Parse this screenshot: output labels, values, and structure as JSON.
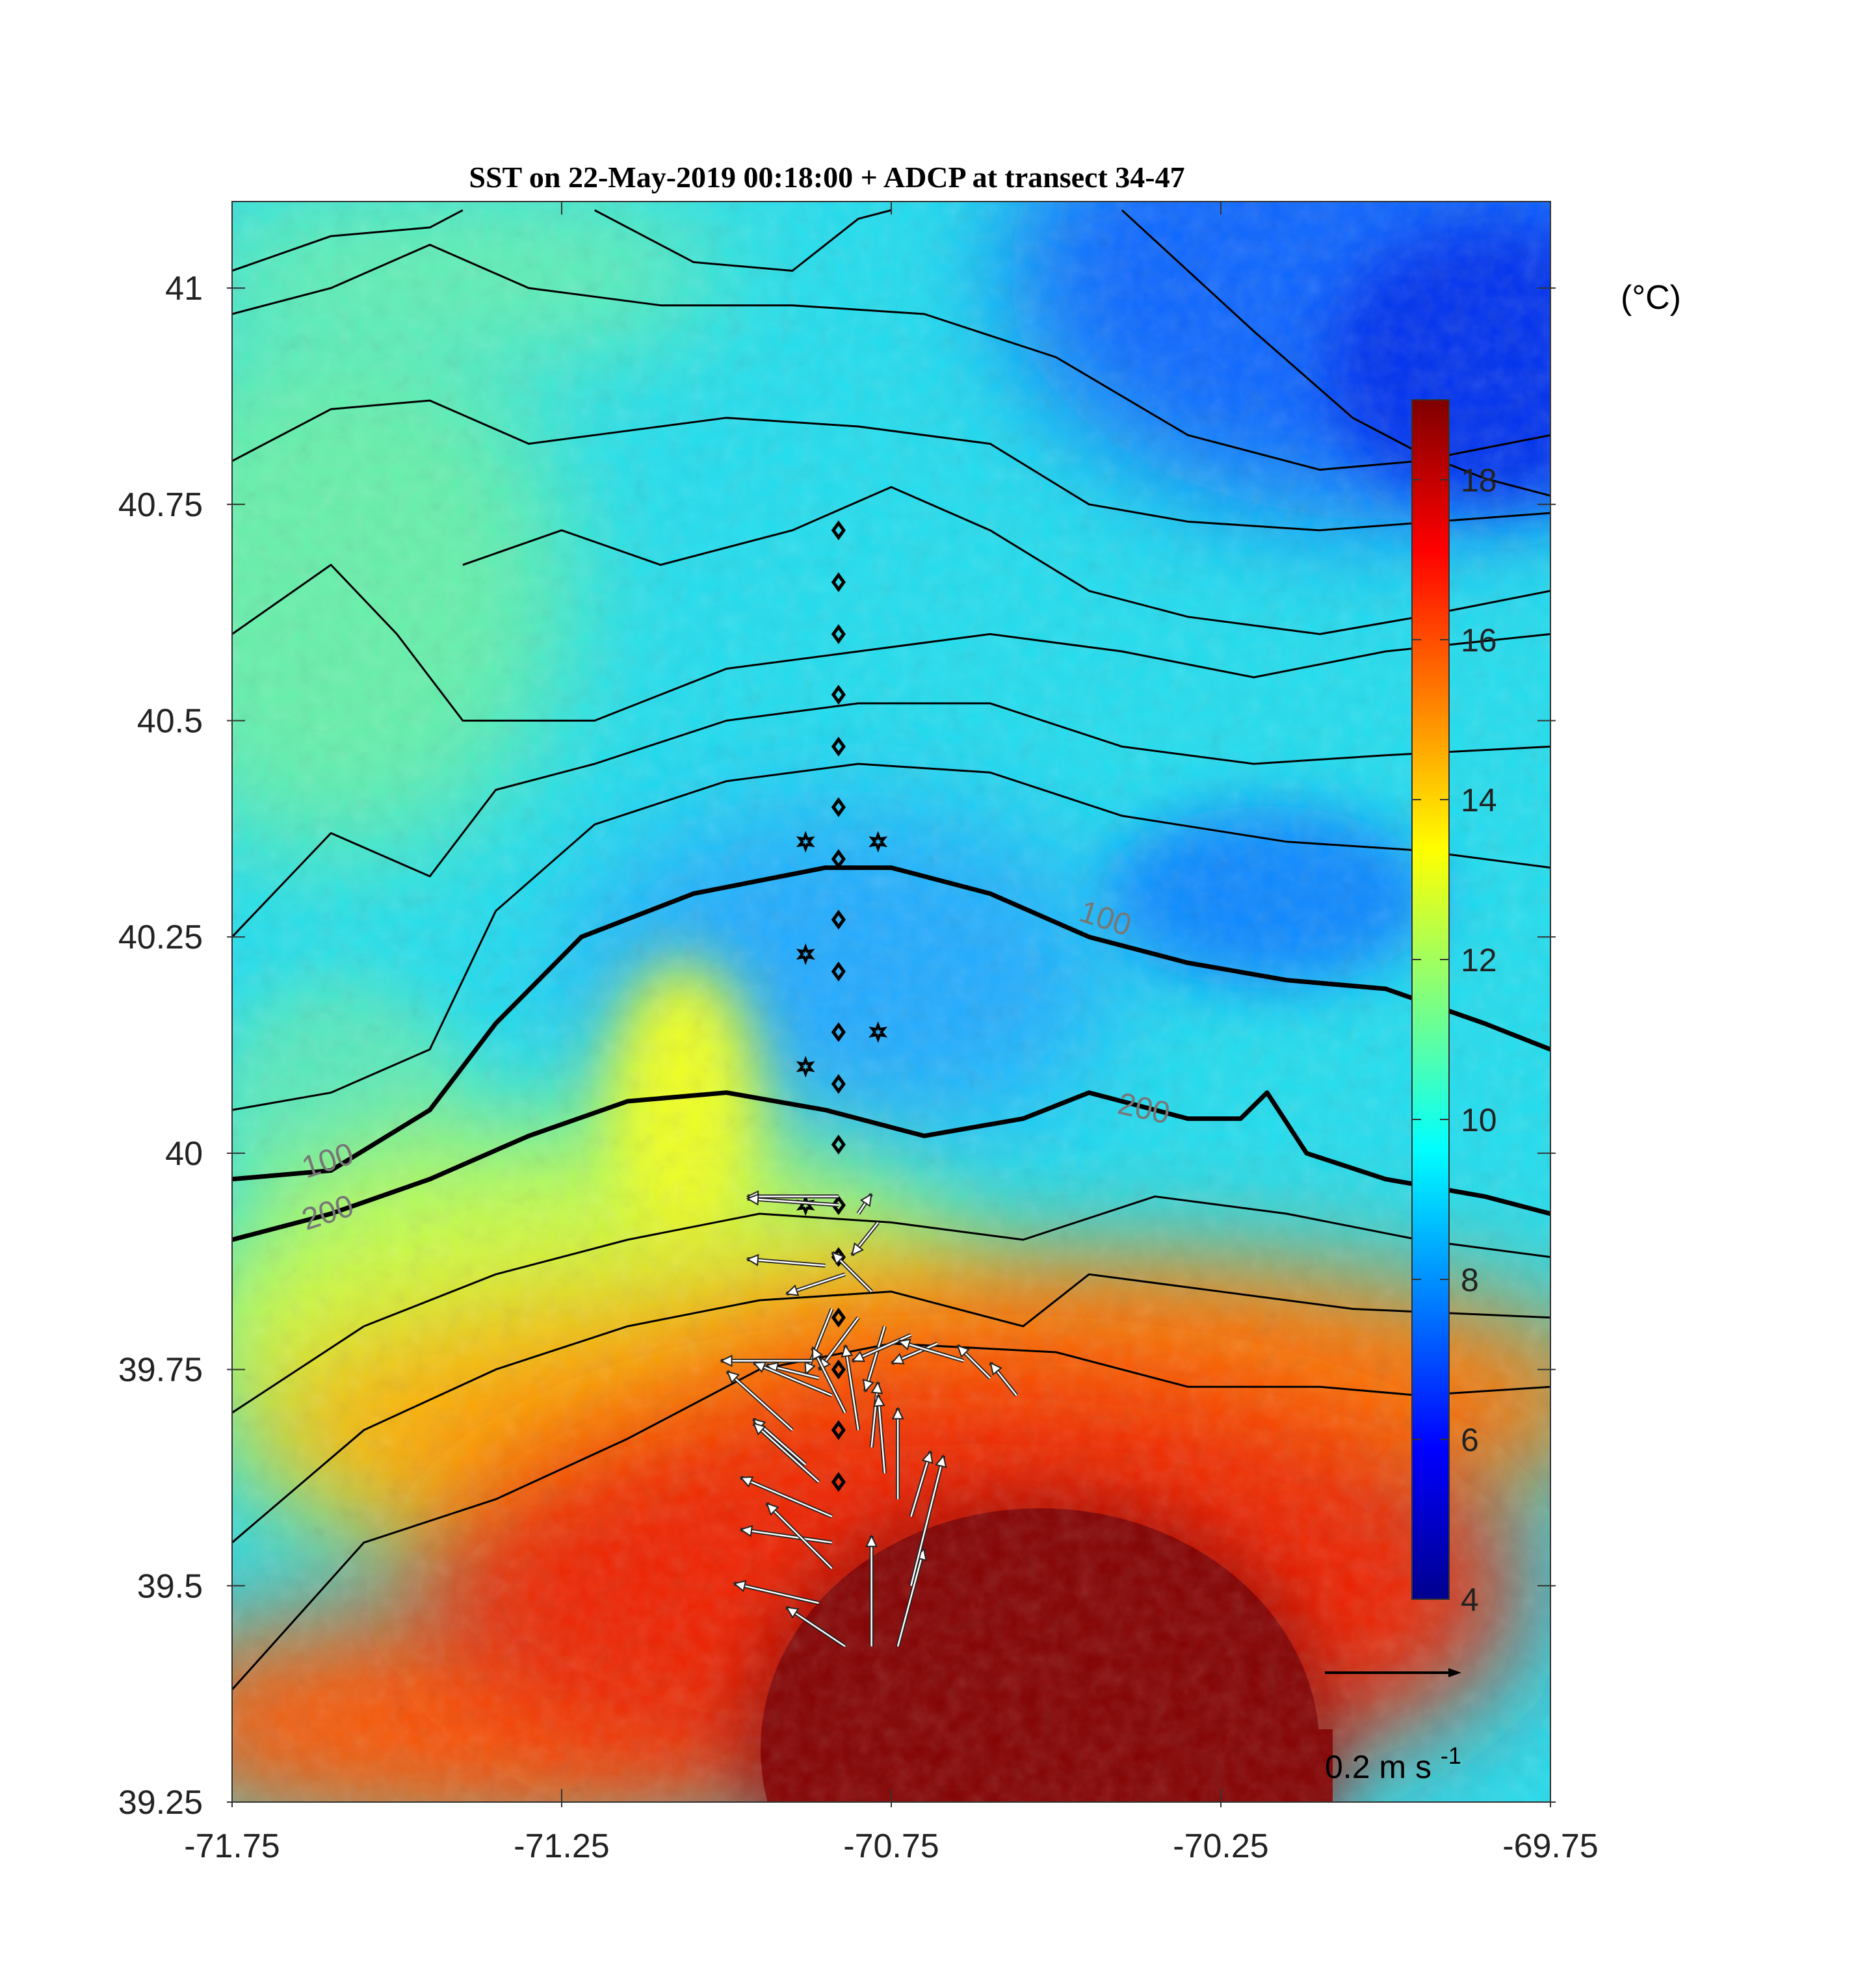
{
  "chart_data": {
    "type": "heatmap",
    "title": "SST on 22-May-2019 00:18:00 + ADCP at transect 34-47",
    "xlabel": "",
    "ylabel": "",
    "xlim": [
      -71.75,
      -69.75
    ],
    "ylim": [
      39.25,
      41.1
    ],
    "x_ticks": [
      -71.75,
      -71.25,
      -70.75,
      -70.25,
      -69.75
    ],
    "x_tick_labels": [
      "-71.75",
      "-71.25",
      "-70.75",
      "-70.25",
      "-69.75"
    ],
    "y_ticks": [
      39.25,
      39.5,
      39.75,
      40,
      40.25,
      40.5,
      40.75,
      41
    ],
    "y_tick_labels": [
      "39.25",
      "39.5",
      "39.75",
      "40",
      "40.25",
      "40.5",
      "40.75",
      "41"
    ],
    "colorbar": {
      "range": [
        4,
        19
      ],
      "ticks": [
        4,
        6,
        8,
        10,
        12,
        14,
        16,
        18
      ],
      "tick_labels": [
        "4",
        "6",
        "8",
        "10",
        "12",
        "14",
        "16",
        "18"
      ],
      "units_label": "(°C)",
      "colormap": "jet"
    },
    "bathymetry_contours": [
      {
        "label": "100",
        "points": [
          [
            -71.75,
            39.97
          ],
          [
            -71.6,
            39.98
          ],
          [
            -71.45,
            40.05
          ],
          [
            -71.35,
            40.15
          ],
          [
            -71.22,
            40.25
          ],
          [
            -71.05,
            40.3
          ],
          [
            -70.85,
            40.33
          ],
          [
            -70.75,
            40.33
          ],
          [
            -70.6,
            40.3
          ],
          [
            -70.45,
            40.25
          ],
          [
            -70.3,
            40.22
          ],
          [
            -70.15,
            40.2
          ],
          [
            -70.0,
            40.19
          ],
          [
            -69.85,
            40.15
          ],
          [
            -69.75,
            40.12
          ]
        ]
      },
      {
        "label": "200",
        "points": [
          [
            -71.75,
            39.9
          ],
          [
            -71.6,
            39.93
          ],
          [
            -71.45,
            39.97
          ],
          [
            -71.3,
            40.02
          ],
          [
            -71.15,
            40.06
          ],
          [
            -71.0,
            40.07
          ],
          [
            -70.85,
            40.05
          ],
          [
            -70.7,
            40.02
          ],
          [
            -70.55,
            40.04
          ],
          [
            -70.45,
            40.07
          ],
          [
            -70.3,
            40.04
          ],
          [
            -70.22,
            40.04
          ],
          [
            -70.18,
            40.07
          ],
          [
            -70.12,
            40.0
          ],
          [
            -70.0,
            39.97
          ],
          [
            -69.85,
            39.95
          ],
          [
            -69.75,
            39.93
          ]
        ]
      }
    ],
    "sst_isotherms": [
      [
        [
          -71.75,
          39.38
        ],
        [
          -71.55,
          39.55
        ],
        [
          -71.35,
          39.6
        ],
        [
          -71.15,
          39.67
        ],
        [
          -70.95,
          39.75
        ],
        [
          -70.75,
          39.78
        ],
        [
          -70.5,
          39.77
        ],
        [
          -70.3,
          39.73
        ],
        [
          -70.1,
          39.73
        ],
        [
          -69.95,
          39.72
        ],
        [
          -69.75,
          39.73
        ]
      ],
      [
        [
          -71.75,
          39.55
        ],
        [
          -71.55,
          39.68
        ],
        [
          -71.35,
          39.75
        ],
        [
          -71.15,
          39.8
        ],
        [
          -70.95,
          39.83
        ],
        [
          -70.75,
          39.84
        ],
        [
          -70.55,
          39.8
        ],
        [
          -70.45,
          39.86
        ],
        [
          -70.25,
          39.84
        ],
        [
          -70.05,
          39.82
        ],
        [
          -69.75,
          39.81
        ]
      ],
      [
        [
          -71.75,
          39.7
        ],
        [
          -71.55,
          39.8
        ],
        [
          -71.35,
          39.86
        ],
        [
          -71.15,
          39.9
        ],
        [
          -70.95,
          39.93
        ],
        [
          -70.75,
          39.92
        ],
        [
          -70.55,
          39.9
        ],
        [
          -70.35,
          39.95
        ],
        [
          -70.15,
          39.93
        ],
        [
          -69.95,
          39.9
        ],
        [
          -69.75,
          39.88
        ]
      ],
      [
        [
          -71.75,
          40.05
        ],
        [
          -71.6,
          40.07
        ],
        [
          -71.45,
          40.12
        ],
        [
          -71.35,
          40.28
        ],
        [
          -71.2,
          40.38
        ],
        [
          -71.0,
          40.43
        ],
        [
          -70.8,
          40.45
        ],
        [
          -70.6,
          40.44
        ],
        [
          -70.4,
          40.39
        ],
        [
          -70.15,
          40.36
        ],
        [
          -69.95,
          40.35
        ],
        [
          -69.75,
          40.33
        ]
      ],
      [
        [
          -71.75,
          40.25
        ],
        [
          -71.6,
          40.37
        ],
        [
          -71.45,
          40.32
        ],
        [
          -71.35,
          40.42
        ],
        [
          -71.2,
          40.45
        ],
        [
          -71.0,
          40.5
        ],
        [
          -70.8,
          40.52
        ],
        [
          -70.6,
          40.52
        ],
        [
          -70.4,
          40.47
        ],
        [
          -70.2,
          40.45
        ],
        [
          -70.0,
          40.46
        ],
        [
          -69.75,
          40.47
        ]
      ],
      [
        [
          -71.75,
          40.6
        ],
        [
          -71.6,
          40.68
        ],
        [
          -71.5,
          40.6
        ],
        [
          -71.4,
          40.5
        ],
        [
          -71.2,
          40.5
        ],
        [
          -71.0,
          40.56
        ],
        [
          -70.8,
          40.58
        ],
        [
          -70.6,
          40.6
        ],
        [
          -70.4,
          40.58
        ],
        [
          -70.2,
          40.55
        ],
        [
          -70.0,
          40.58
        ],
        [
          -69.75,
          40.6
        ]
      ],
      [
        [
          -71.4,
          40.68
        ],
        [
          -71.25,
          40.72
        ],
        [
          -71.1,
          40.68
        ],
        [
          -70.9,
          40.72
        ],
        [
          -70.75,
          40.77
        ],
        [
          -70.6,
          40.72
        ],
        [
          -70.45,
          40.65
        ],
        [
          -70.3,
          40.62
        ],
        [
          -70.1,
          40.6
        ],
        [
          -69.95,
          40.62
        ],
        [
          -69.75,
          40.65
        ]
      ],
      [
        [
          -71.75,
          40.8
        ],
        [
          -71.6,
          40.86
        ],
        [
          -71.45,
          40.87
        ],
        [
          -71.3,
          40.82
        ],
        [
          -71.2,
          40.83
        ],
        [
          -71.0,
          40.85
        ],
        [
          -70.8,
          40.84
        ],
        [
          -70.6,
          40.82
        ],
        [
          -70.45,
          40.75
        ],
        [
          -70.3,
          40.73
        ],
        [
          -70.1,
          40.72
        ],
        [
          -69.75,
          40.74
        ]
      ],
      [
        [
          -71.75,
          40.97
        ],
        [
          -71.6,
          41.0
        ],
        [
          -71.45,
          41.05
        ],
        [
          -71.3,
          41.0
        ],
        [
          -71.1,
          40.98
        ],
        [
          -70.9,
          40.98
        ],
        [
          -70.7,
          40.97
        ],
        [
          -70.5,
          40.92
        ],
        [
          -70.3,
          40.83
        ],
        [
          -70.1,
          40.79
        ],
        [
          -69.95,
          40.8
        ],
        [
          -69.75,
          40.83
        ]
      ],
      [
        [
          -71.75,
          41.02
        ],
        [
          -71.6,
          41.06
        ],
        [
          -71.45,
          41.07
        ],
        [
          -71.4,
          41.09
        ]
      ],
      [
        [
          -71.2,
          41.09
        ],
        [
          -71.05,
          41.03
        ],
        [
          -70.9,
          41.02
        ],
        [
          -70.8,
          41.08
        ],
        [
          -70.75,
          41.09
        ]
      ],
      [
        [
          -70.4,
          41.09
        ],
        [
          -70.3,
          41.02
        ],
        [
          -70.2,
          40.95
        ],
        [
          -70.05,
          40.85
        ],
        [
          -69.95,
          40.81
        ],
        [
          -69.85,
          40.78
        ],
        [
          -69.75,
          40.76
        ]
      ]
    ],
    "stations_diamond": [
      [
        -70.83,
        40.72
      ],
      [
        -70.83,
        40.66
      ],
      [
        -70.83,
        40.6
      ],
      [
        -70.83,
        40.53
      ],
      [
        -70.83,
        40.47
      ],
      [
        -70.83,
        40.4
      ],
      [
        -70.83,
        40.34
      ],
      [
        -70.83,
        40.27
      ],
      [
        -70.83,
        40.21
      ],
      [
        -70.83,
        40.14
      ],
      [
        -70.83,
        40.08
      ],
      [
        -70.83,
        40.01
      ],
      [
        -70.83,
        39.94
      ],
      [
        -70.83,
        39.88
      ],
      [
        -70.83,
        39.81
      ],
      [
        -70.83,
        39.75
      ],
      [
        -70.83,
        39.68
      ],
      [
        -70.83,
        39.62
      ]
    ],
    "stations_star": [
      [
        -70.88,
        40.36
      ],
      [
        -70.77,
        40.36
      ],
      [
        -70.88,
        40.23
      ],
      [
        -70.77,
        40.14
      ],
      [
        -70.88,
        40.1
      ],
      [
        -70.88,
        39.94
      ]
    ],
    "adcp_vectors": {
      "scale_label": "0.2 m s",
      "scale_exponent": "-1",
      "scale_speed": 0.2,
      "vectors": [
        [
          -70.83,
          39.95,
          -0.14,
          0.0
        ],
        [
          -70.83,
          39.94,
          -0.14,
          0.01
        ],
        [
          -70.8,
          39.93,
          0.02,
          0.03
        ],
        [
          -70.77,
          39.92,
          -0.04,
          -0.05
        ],
        [
          -70.85,
          39.87,
          -0.12,
          0.01
        ],
        [
          -70.82,
          39.86,
          -0.09,
          -0.03
        ],
        [
          -70.78,
          39.84,
          -0.06,
          0.06
        ],
        [
          -70.84,
          39.82,
          -0.04,
          -0.1
        ],
        [
          -70.8,
          39.81,
          -0.06,
          -0.08
        ],
        [
          -70.76,
          39.8,
          -0.03,
          -0.1
        ],
        [
          -70.72,
          39.79,
          -0.09,
          -0.04
        ],
        [
          -70.68,
          39.78,
          -0.07,
          -0.03
        ],
        [
          -70.64,
          39.76,
          -0.1,
          0.03
        ],
        [
          -70.6,
          39.74,
          -0.05,
          0.05
        ],
        [
          -70.56,
          39.72,
          -0.04,
          0.05
        ],
        [
          -70.87,
          39.76,
          -0.14,
          0.0
        ],
        [
          -70.86,
          39.74,
          -0.08,
          0.02
        ],
        [
          -70.84,
          39.72,
          -0.12,
          0.05
        ],
        [
          -70.82,
          39.7,
          -0.05,
          0.1
        ],
        [
          -70.8,
          39.68,
          -0.02,
          0.13
        ],
        [
          -70.78,
          39.66,
          0.01,
          0.1
        ],
        [
          -70.76,
          39.63,
          -0.01,
          0.12
        ],
        [
          -70.74,
          39.6,
          0.0,
          0.14
        ],
        [
          -70.72,
          39.58,
          0.03,
          0.1
        ],
        [
          -70.9,
          39.68,
          -0.1,
          0.09
        ],
        [
          -70.88,
          39.64,
          -0.08,
          0.07
        ],
        [
          -70.86,
          39.62,
          -0.1,
          0.09
        ],
        [
          -70.84,
          39.58,
          -0.14,
          0.06
        ],
        [
          -70.84,
          39.55,
          -0.14,
          0.02
        ],
        [
          -70.84,
          39.52,
          -0.1,
          0.1
        ],
        [
          -70.86,
          39.48,
          -0.13,
          0.03
        ],
        [
          -70.82,
          39.43,
          -0.09,
          0.06
        ],
        [
          -70.78,
          39.43,
          0.0,
          0.17
        ],
        [
          -70.74,
          39.43,
          0.04,
          0.15
        ],
        [
          -70.72,
          39.5,
          0.05,
          0.2
        ]
      ]
    }
  }
}
